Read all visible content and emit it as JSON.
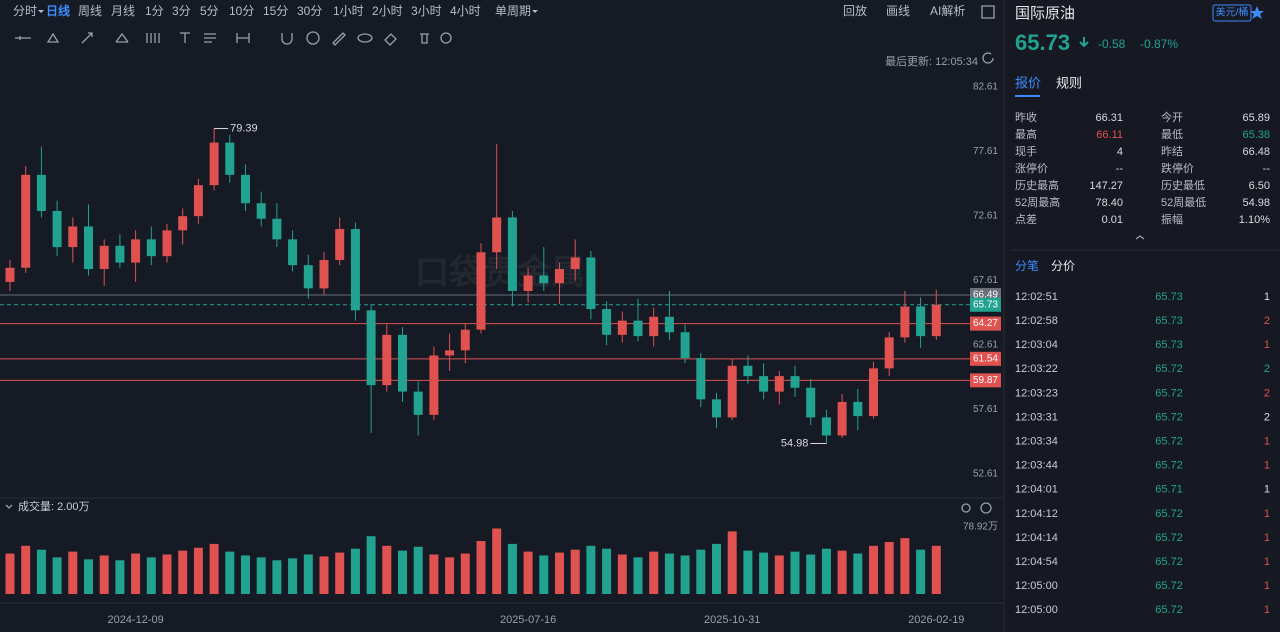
{
  "toolbar": {
    "periods": [
      "分时",
      "日线",
      "周线",
      "月线",
      "1分",
      "3分",
      "5分",
      "10分",
      "15分",
      "30分",
      "1小时",
      "2小时",
      "3小时",
      "4小时",
      "单周期"
    ],
    "actions": [
      "回放",
      "画线",
      "AI解析"
    ],
    "last_update": "最后更新: 12:05:34"
  },
  "watermark": "口袋贵金属",
  "chart_data": [
    {
      "type": "candlestick",
      "up_color": "#e0524f",
      "down_color": "#22a391",
      "categories": [
        null,
        null,
        null,
        null,
        null,
        null,
        null,
        null,
        "2024-12-09",
        null,
        null,
        null,
        null,
        null,
        null,
        null,
        null,
        null,
        null,
        null,
        null,
        null,
        null,
        null,
        null,
        null,
        null,
        null,
        null,
        null,
        null,
        null,
        null,
        "2025-07-16",
        null,
        null,
        null,
        null,
        null,
        null,
        null,
        null,
        null,
        null,
        null,
        null,
        "2025-10-31",
        null,
        null,
        null,
        null,
        null,
        null,
        null,
        null,
        null,
        null,
        null,
        null,
        "2026-02-19"
      ],
      "candles": [
        [
          67.5,
          69.2,
          66.8,
          68.6
        ],
        [
          68.6,
          76.5,
          68.2,
          75.8
        ],
        [
          75.8,
          78.0,
          72.5,
          73.0
        ],
        [
          73.0,
          73.8,
          69.5,
          70.2
        ],
        [
          70.2,
          72.5,
          69.0,
          71.8
        ],
        [
          71.8,
          73.5,
          68.0,
          68.5
        ],
        [
          68.5,
          70.8,
          67.2,
          70.3
        ],
        [
          70.3,
          71.2,
          68.6,
          69.0
        ],
        [
          69.0,
          71.5,
          67.5,
          70.8
        ],
        [
          70.8,
          71.8,
          68.8,
          69.5
        ],
        [
          69.5,
          72.0,
          69.0,
          71.5
        ],
        [
          71.5,
          73.2,
          70.4,
          72.6
        ],
        [
          72.6,
          75.5,
          72.0,
          75.0
        ],
        [
          75.0,
          79.39,
          74.6,
          78.3
        ],
        [
          78.3,
          78.9,
          75.2,
          75.8
        ],
        [
          75.8,
          76.6,
          73.0,
          73.6
        ],
        [
          73.6,
          74.5,
          71.8,
          72.4
        ],
        [
          72.4,
          73.6,
          70.2,
          70.8
        ],
        [
          70.8,
          71.5,
          68.3,
          68.8
        ],
        [
          68.8,
          69.6,
          66.2,
          67.0
        ],
        [
          67.0,
          69.8,
          66.5,
          69.2
        ],
        [
          69.2,
          72.5,
          68.8,
          71.6
        ],
        [
          71.6,
          72.1,
          64.5,
          65.3
        ],
        [
          65.3,
          65.8,
          55.8,
          59.5
        ],
        [
          59.5,
          64.2,
          59.0,
          63.4
        ],
        [
          63.4,
          64.0,
          58.2,
          59.0
        ],
        [
          59.0,
          59.8,
          55.6,
          57.2
        ],
        [
          57.2,
          62.5,
          56.8,
          61.8
        ],
        [
          61.8,
          63.5,
          60.6,
          62.2
        ],
        [
          62.2,
          64.3,
          61.2,
          63.8
        ],
        [
          63.8,
          70.5,
          63.5,
          69.8
        ],
        [
          69.8,
          78.2,
          68.5,
          72.5
        ],
        [
          72.5,
          73.0,
          65.6,
          66.8
        ],
        [
          66.8,
          68.6,
          65.9,
          68.0
        ],
        [
          68.0,
          70.2,
          66.8,
          67.4
        ],
        [
          67.4,
          69.0,
          65.8,
          68.5
        ],
        [
          68.5,
          70.8,
          67.6,
          69.4
        ],
        [
          69.4,
          69.9,
          64.6,
          65.4
        ],
        [
          65.4,
          66.0,
          62.6,
          63.4
        ],
        [
          63.4,
          65.2,
          62.8,
          64.5
        ],
        [
          64.5,
          66.2,
          62.9,
          63.3
        ],
        [
          63.3,
          65.5,
          62.5,
          64.8
        ],
        [
          64.8,
          66.8,
          63.0,
          63.6
        ],
        [
          63.6,
          64.2,
          61.2,
          61.6
        ],
        [
          61.6,
          62.0,
          57.8,
          58.4
        ],
        [
          58.4,
          58.9,
          56.2,
          57.0
        ],
        [
          57.0,
          61.5,
          56.8,
          61.0
        ],
        [
          61.0,
          61.8,
          59.6,
          60.2
        ],
        [
          60.2,
          61.2,
          58.4,
          59.0
        ],
        [
          59.0,
          60.6,
          58.0,
          60.2
        ],
        [
          60.2,
          61.0,
          58.6,
          59.3
        ],
        [
          59.3,
          60.0,
          56.4,
          57.0
        ],
        [
          57.0,
          57.6,
          54.98,
          55.6
        ],
        [
          55.6,
          58.8,
          55.4,
          58.2
        ],
        [
          58.2,
          59.2,
          56.0,
          57.1
        ],
        [
          57.1,
          61.3,
          56.9,
          60.8
        ],
        [
          60.8,
          63.6,
          60.2,
          63.2
        ],
        [
          63.2,
          66.8,
          62.8,
          65.6
        ],
        [
          65.6,
          66.3,
          62.4,
          63.3
        ],
        [
          63.3,
          66.9,
          63.0,
          65.73
        ]
      ],
      "ylim": [
        50.83,
        83.54
      ],
      "yticks": [
        82.61,
        77.61,
        72.61,
        67.61,
        62.61,
        57.61,
        52.61
      ],
      "grid": false,
      "price_lines": [
        {
          "value": 66.49,
          "color": "#6b6f78"
        },
        {
          "value": 65.73,
          "color": "#22a391"
        },
        {
          "value": 64.27,
          "color": "#e0524f"
        },
        {
          "value": 61.54,
          "color": "#e0524f"
        },
        {
          "value": 59.87,
          "color": "#e0524f"
        }
      ]
    },
    {
      "type": "bar",
      "title": "成交量: 2.00万",
      "values": [
        42,
        50,
        46,
        38,
        44,
        36,
        40,
        35,
        42,
        38,
        41,
        45,
        48,
        52,
        44,
        40,
        38,
        35,
        37,
        41,
        39,
        43,
        47,
        60,
        50,
        45,
        49,
        41,
        38,
        42,
        55,
        68,
        52,
        44,
        40,
        43,
        46,
        50,
        47,
        41,
        38,
        44,
        42,
        40,
        46,
        52,
        65,
        45,
        43,
        40,
        44,
        41,
        47,
        45,
        42,
        50,
        54,
        58,
        46,
        50
      ],
      "ylim": [
        0,
        82
      ],
      "yticks": [
        {
          "value": 78.92,
          "label": "78.92万"
        }
      ]
    }
  ],
  "quote_panel": {
    "name": "国际原油",
    "unit": "美元/桶",
    "price": "65.73",
    "change": "-0.58",
    "change_pct": "-0.87%",
    "tabs": [
      "报价",
      "规则"
    ],
    "stats": [
      [
        "昨收",
        "66.31",
        "今开",
        "65.89"
      ],
      [
        "最高",
        "66.11",
        "最低",
        "65.38"
      ],
      [
        "现手",
        "4",
        "昨结",
        "66.48"
      ],
      [
        "涨停价",
        "--",
        "跌停价",
        "--"
      ],
      [
        "历史最高",
        "147.27",
        "历史最低",
        "6.50"
      ],
      [
        "52周最高",
        "78.40",
        "52周最低",
        "54.98"
      ],
      [
        "点差",
        "0.01",
        "振幅",
        "1.10%"
      ]
    ],
    "trade_tabs": [
      "分笔",
      "分价"
    ],
    "trades": [
      [
        "12:02:51",
        "65.73",
        "1"
      ],
      [
        "12:02:58",
        "65.73",
        "2"
      ],
      [
        "12:03:04",
        "65.73",
        "1"
      ],
      [
        "12:03:22",
        "65.72",
        "2"
      ],
      [
        "12:03:23",
        "65.72",
        "2"
      ],
      [
        "12:03:31",
        "65.72",
        "2"
      ],
      [
        "12:03:34",
        "65.72",
        "1"
      ],
      [
        "12:03:44",
        "65.72",
        "1"
      ],
      [
        "12:04:01",
        "65.71",
        "1"
      ],
      [
        "12:04:12",
        "65.72",
        "1"
      ],
      [
        "12:04:14",
        "65.72",
        "1"
      ],
      [
        "12:04:54",
        "65.72",
        "1"
      ],
      [
        "12:05:00",
        "65.72",
        "1"
      ],
      [
        "12:05:00",
        "65.72",
        "1"
      ]
    ],
    "trade_qty_colors": [
      "#d8dbe0",
      "#e0524f",
      "#e0524f",
      "#22a391",
      "#e0524f",
      "#d8dbe0",
      "#e0524f",
      "#e0524f",
      "#d8dbe0",
      "#e0524f",
      "#e0524f",
      "#e0524f",
      "#e0524f",
      "#e0524f"
    ]
  }
}
